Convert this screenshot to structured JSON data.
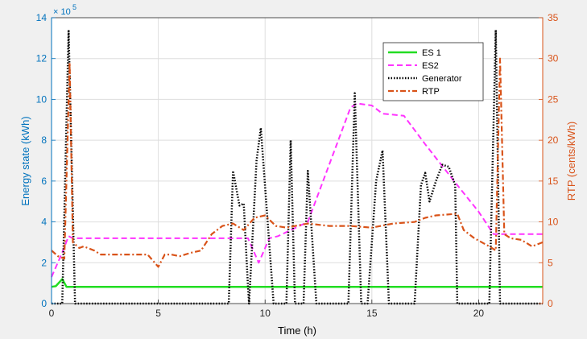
{
  "chart_data": {
    "type": "line",
    "xlabel": "Time (h)",
    "ylabel_left": "Energy state (kWh)",
    "ylabel_right": "RTP (cents/kWh)",
    "exponent_label": "× 10",
    "exponent_power": "5",
    "xlim": [
      0,
      23
    ],
    "ylim_left": [
      0,
      14
    ],
    "ylim_right": [
      0,
      35
    ],
    "xticks": [
      0,
      5,
      10,
      15,
      20
    ],
    "yticks_left": [
      0,
      2,
      4,
      6,
      8,
      10,
      12,
      14
    ],
    "yticks_right": [
      0,
      5,
      10,
      15,
      20,
      25,
      30,
      35
    ],
    "grid": true,
    "legend_position": "top-right",
    "colors": {
      "left_axis": "#0072BD",
      "right_axis": "#D95319",
      "es1": "#22DD22",
      "es2": "#FF33FF",
      "generator": "#000000",
      "rtp": "#D95319",
      "grid": "#dedede",
      "plot_bg": "#ffffff"
    },
    "series": [
      {
        "name": "ES 1",
        "axis": "left",
        "style": "solid",
        "x": [
          0,
          0.2,
          0.5,
          0.7,
          1,
          5,
          10,
          15,
          20,
          23
        ],
        "y": [
          0.82,
          0.85,
          1.2,
          0.82,
          0.82,
          0.82,
          0.82,
          0.82,
          0.82,
          0.82
        ]
      },
      {
        "name": "ES2",
        "axis": "left",
        "style": "dashed",
        "x": [
          0,
          0.5,
          0.8,
          1,
          9.2,
          9.7,
          10.2,
          10.6,
          11,
          12,
          14,
          14.3,
          15,
          15.5,
          16.5,
          17.5,
          19,
          20,
          20.7,
          23
        ],
        "y": [
          1.3,
          2.5,
          3.3,
          3.2,
          3.2,
          2,
          3.2,
          3.3,
          3.5,
          4,
          9.6,
          9.8,
          9.7,
          9.3,
          9.2,
          7.8,
          5.8,
          4.5,
          3.4,
          3.4
        ]
      },
      {
        "name": "Generator",
        "axis": "left",
        "style": "dotted",
        "x": [
          0,
          0.5,
          0.8,
          1.1,
          8.3,
          8.5,
          8.8,
          9.0,
          9.2,
          9.25,
          9.6,
          9.8,
          10.4,
          11.0,
          11.2,
          11.4,
          11.8,
          12.0,
          12.4,
          13.9,
          14.2,
          14.5,
          14.8,
          15.2,
          15.5,
          15.8,
          17.0,
          17.3,
          17.5,
          17.7,
          18.0,
          18.3,
          18.6,
          18.9,
          19.0,
          20.5,
          20.8,
          21.0,
          23
        ],
        "y": [
          0,
          0,
          13.4,
          0,
          0,
          6.5,
          4.8,
          4.9,
          0.8,
          0,
          7,
          8.6,
          0,
          0,
          8,
          0,
          0,
          6.5,
          0,
          0,
          10.3,
          0,
          0,
          6,
          7.5,
          0,
          0,
          5.8,
          6.4,
          5,
          6,
          6.8,
          6.7,
          5.8,
          0,
          0,
          13.4,
          0,
          0
        ]
      },
      {
        "name": "RTP",
        "axis": "right",
        "style": "dashdot",
        "x": [
          0,
          0.3,
          0.6,
          0.85,
          1.0,
          1.3,
          1.5,
          2.0,
          2.3,
          2.8,
          3.5,
          4.0,
          4.5,
          5.0,
          5.3,
          5.6,
          6.0,
          6.5,
          7.0,
          7.5,
          8.0,
          8.5,
          9.0,
          9.5,
          10.0,
          10.5,
          11.0,
          12.0,
          13.0,
          14.0,
          15.0,
          16.0,
          17.0,
          17.5,
          18.0,
          19.0,
          19.3,
          19.8,
          20.5,
          20.8,
          21.0,
          21.2,
          21.5,
          22.0,
          22.5,
          23
        ],
        "y": [
          6.5,
          5.8,
          5.5,
          29.5,
          7.5,
          6.8,
          7,
          6.5,
          6,
          6,
          6,
          6,
          6,
          4.5,
          6,
          6,
          5.8,
          6.2,
          6.5,
          8.5,
          9.5,
          9.8,
          9.0,
          10.5,
          10.8,
          9.5,
          9.3,
          9.8,
          9.5,
          9.5,
          9.3,
          9.8,
          10,
          10.5,
          10.8,
          11,
          9.0,
          8.0,
          7.0,
          6.5,
          30,
          8.5,
          8.0,
          7.8,
          7.0,
          7.5
        ]
      }
    ]
  }
}
